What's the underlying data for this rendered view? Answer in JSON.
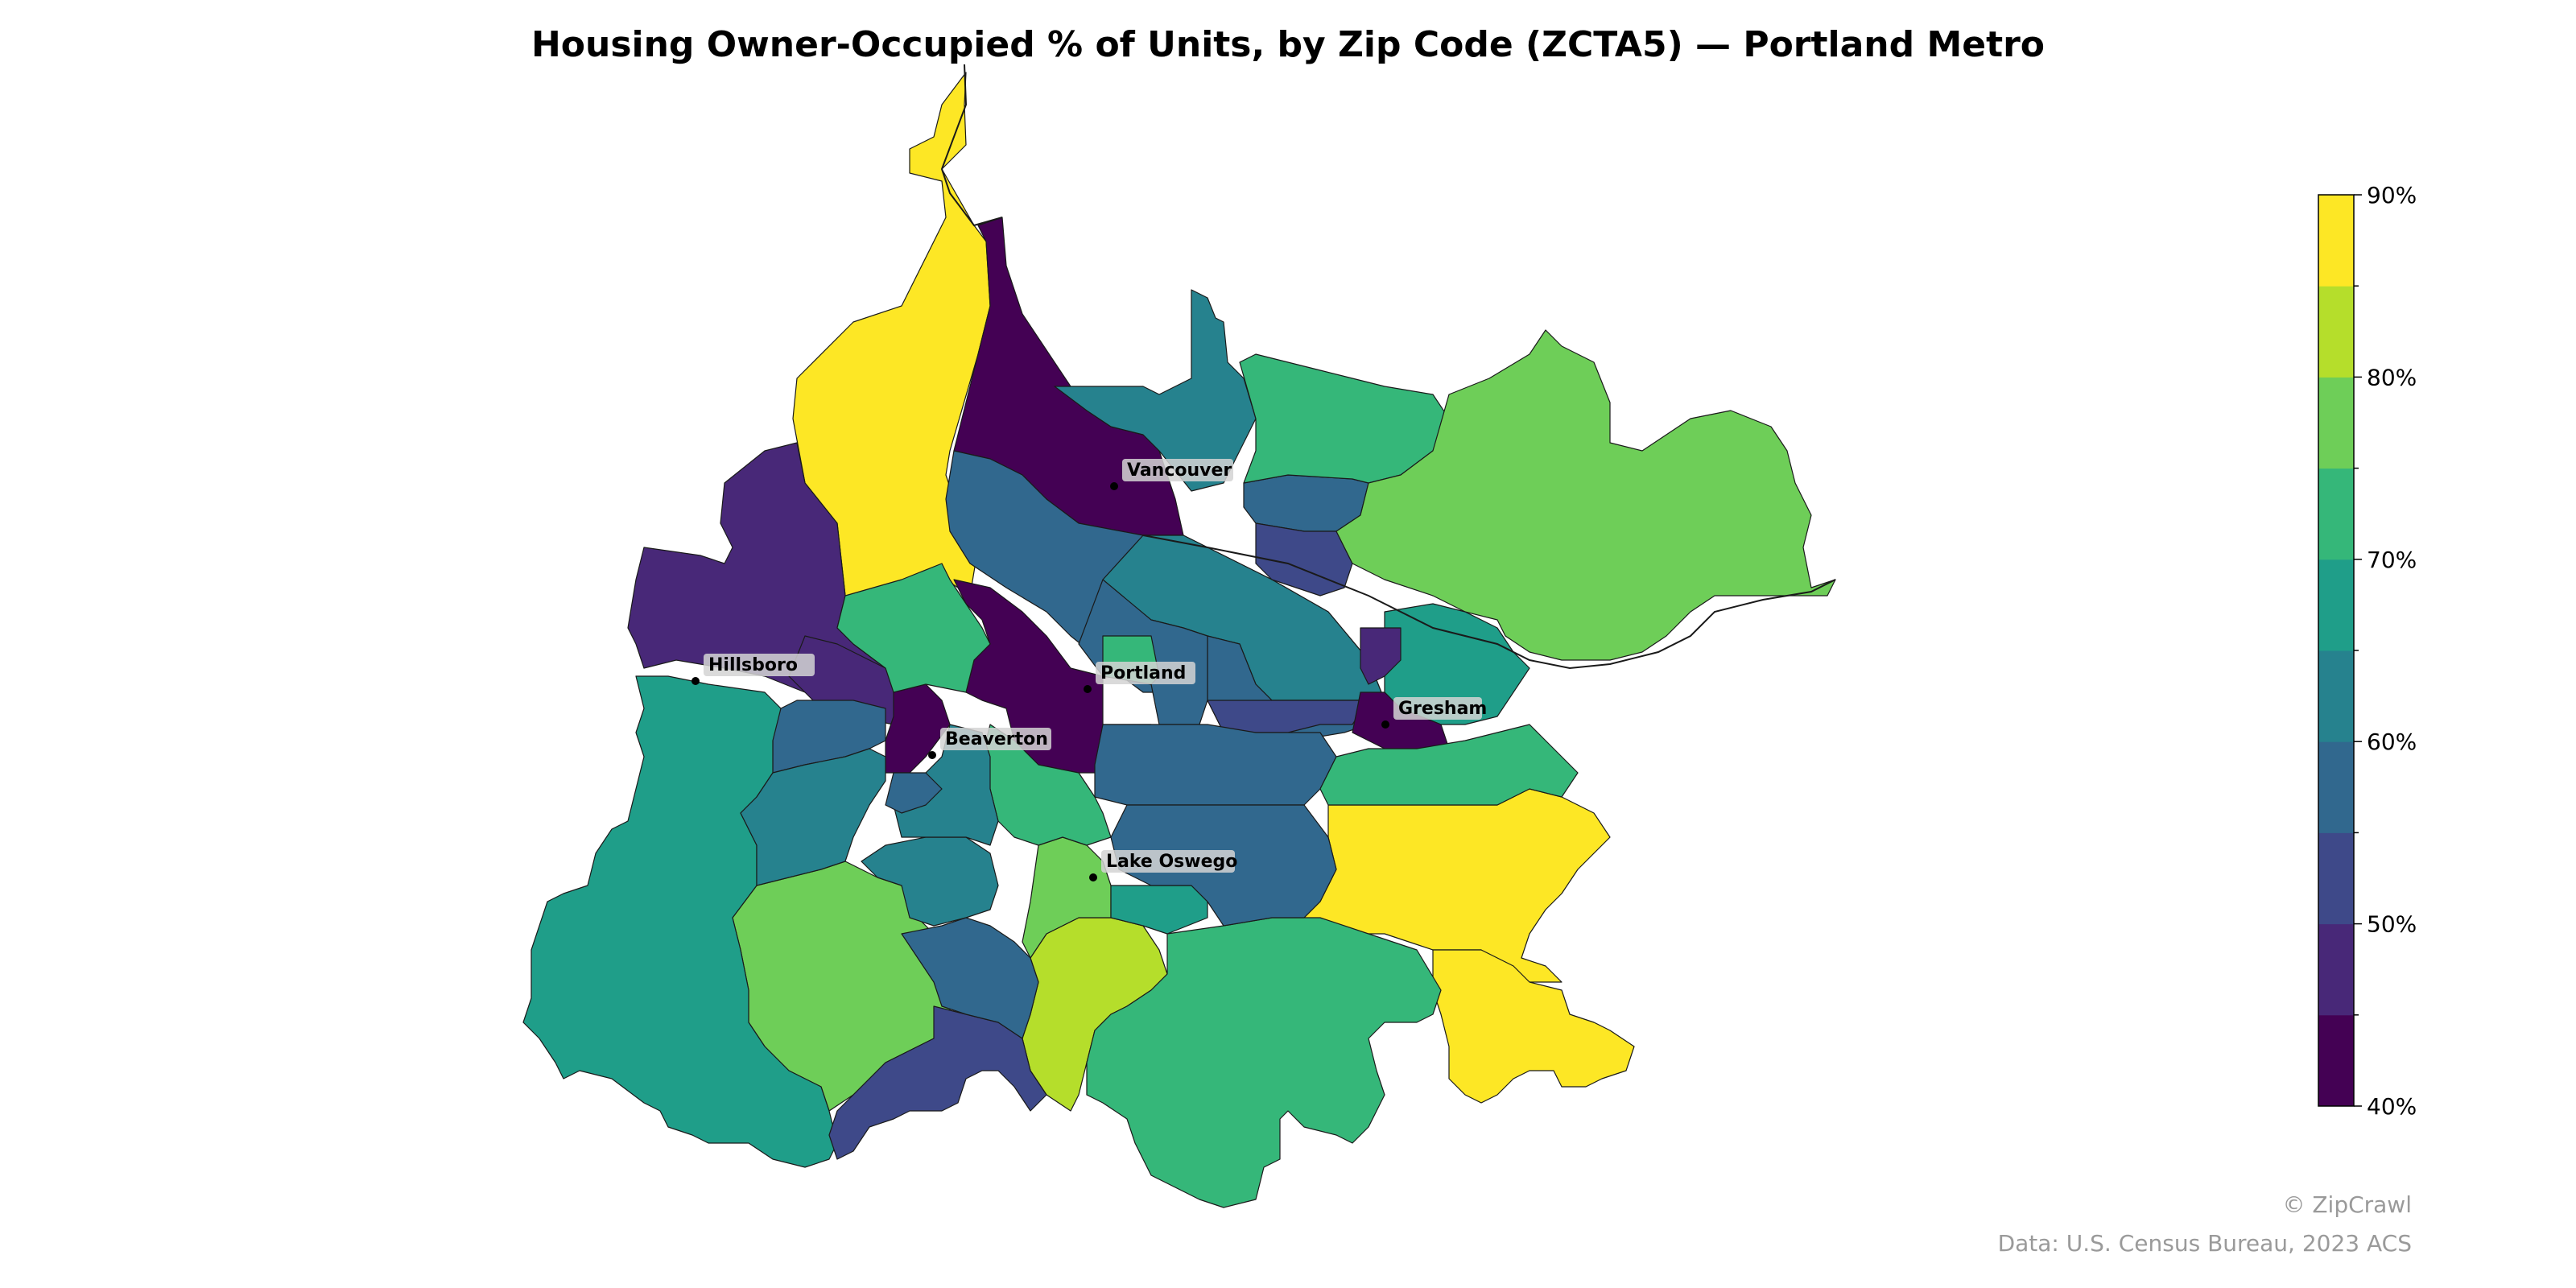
{
  "title": "Housing Owner-Occupied % of Units, by Zip Code (ZCTA5) — Portland Metro",
  "colorbar": {
    "min": 40,
    "max": 90,
    "step": 5,
    "tick_labels": [
      "40%",
      "50%",
      "60%",
      "70%",
      "80%",
      "90%"
    ],
    "colors": [
      "#440154",
      "#482878",
      "#3e4989",
      "#31688e",
      "#26828e",
      "#1f9e89",
      "#35b779",
      "#6ece58",
      "#b5de2b",
      "#fde725"
    ]
  },
  "cities": [
    {
      "name": "Vancouver"
    },
    {
      "name": "Hillsboro"
    },
    {
      "name": "Portland"
    },
    {
      "name": "Beaverton"
    },
    {
      "name": "Gresham"
    },
    {
      "name": "Lake Oswego"
    }
  ],
  "zones": [
    {
      "value": 88
    },
    {
      "value": 42
    },
    {
      "value": 62
    },
    {
      "value": 58
    },
    {
      "value": 47
    },
    {
      "value": 48
    },
    {
      "value": 42
    },
    {
      "value": 44
    },
    {
      "value": 72
    },
    {
      "value": 59
    },
    {
      "value": 78
    },
    {
      "value": 68
    },
    {
      "value": 64
    },
    {
      "value": 57
    },
    {
      "value": 52
    },
    {
      "value": 74
    },
    {
      "value": 78
    },
    {
      "value": 68
    },
    {
      "value": 55
    },
    {
      "value": 57
    },
    {
      "value": 72
    },
    {
      "value": 52
    },
    {
      "value": 57
    },
    {
      "value": 88
    },
    {
      "value": 86
    },
    {
      "value": 83
    },
    {
      "value": 73
    },
    {
      "value": 52
    },
    {
      "value": 77
    },
    {
      "value": 68
    },
    {
      "value": 61
    },
    {
      "value": 57
    },
    {
      "value": 62
    },
    {
      "value": 72
    },
    {
      "value": 42
    },
    {
      "value": 45
    },
    {
      "value": 63
    },
    {
      "value": 57
    },
    {
      "value": 58
    },
    {
      "value": 70
    }
  ],
  "credits": {
    "brand": "© ZipCrawl",
    "source": "Data: U.S. Census Bureau, 2023 ACS"
  }
}
